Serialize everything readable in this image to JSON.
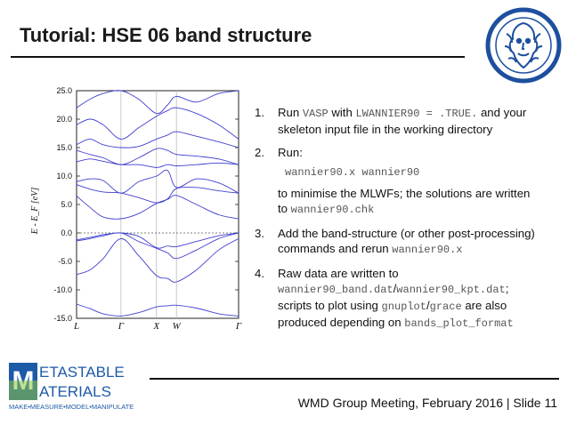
{
  "slide": {
    "title": "Tutorial: HSE 06 band structure",
    "footer": "WMD Group Meeting, February 2016 | Slide 11"
  },
  "logo": {
    "line1_big": "M",
    "line1_rest": "ETASTABLE",
    "line2_big": "M",
    "line2_rest": "ATERIALS",
    "tagline": "MAKE•MEASURE•MODEL•MANIPULATE",
    "colors": {
      "blue": "#1d5aa8",
      "green": "#8cc63f"
    }
  },
  "steps": [
    {
      "num": "1.",
      "t1": "Run ",
      "c1": "VASP",
      "t2": " with ",
      "c2": "LWANNIER90 = .TRUE.",
      "t3": " and your skeleton input file in the working directory"
    },
    {
      "num": "2.",
      "t1": "Run:",
      "code": "wannier90.x wannier90",
      "t2": "to minimise the MLWFs; the solutions are written to ",
      "c1": "wannier90.chk"
    },
    {
      "num": "3.",
      "t1": "Add the band-structure (or other post-processing) commands and rerun ",
      "c1": "wannier90.x"
    },
    {
      "num": "4.",
      "t1": "Raw data are written to ",
      "c1": "wannier90_band.dat",
      "t2": "/",
      "c2": "wannier90_kpt.dat",
      "t3": "; scripts to plot using ",
      "c3": "gnuplot",
      "t4": "/",
      "c4": "grace",
      "t5": " are also produced depending on ",
      "c5": "bands_plot_format"
    }
  ],
  "chart_data": {
    "type": "line",
    "ylabel": "E - E_F [eV]",
    "ylim": [
      -15,
      25
    ],
    "yticks": [
      "25.0",
      "20.0",
      "15.0",
      "10.0",
      "5.0",
      "0.0",
      "-5.0",
      "-10.0",
      "-15.0"
    ],
    "xticks": [
      "L",
      "Γ",
      "X",
      "W",
      "Γ"
    ],
    "kpath": [
      0,
      1,
      1.8,
      2.25,
      3.65
    ],
    "fermi_level": 0,
    "band_color": "#3f3fd0",
    "series": [
      {
        "x": [
          0,
          0.3,
          0.6,
          1,
          1.4,
          1.8,
          2.05,
          2.25,
          2.7,
          3.2,
          3.65
        ],
        "y": [
          -12.5,
          -13.3,
          -14.2,
          -14.6,
          -14.0,
          -13.0,
          -12.8,
          -12.7,
          -13.2,
          -14.2,
          -14.6
        ]
      },
      {
        "x": [
          0,
          0.3,
          0.6,
          1,
          1.4,
          1.8,
          2.05,
          2.25,
          2.7,
          3.2,
          3.65
        ],
        "y": [
          -7.3,
          -6.5,
          -4.5,
          -1.0,
          -4.0,
          -7.5,
          -8.0,
          -8.6,
          -6.5,
          -3.0,
          -1.0
        ]
      },
      {
        "x": [
          0,
          0.3,
          0.6,
          1,
          1.4,
          1.8,
          2.05,
          2.25,
          2.7,
          3.2,
          3.65
        ],
        "y": [
          -1.4,
          -1.0,
          -0.5,
          0,
          -1.5,
          -2.7,
          -3.5,
          -4.5,
          -3.0,
          -1.0,
          0
        ]
      },
      {
        "x": [
          0,
          0.3,
          0.6,
          1,
          1.4,
          1.8,
          2.05,
          2.25,
          2.7,
          3.2,
          3.65
        ],
        "y": [
          -1.2,
          -0.8,
          -0.3,
          0,
          -0.6,
          -2.6,
          -2.3,
          -2.4,
          -1.5,
          -0.5,
          0
        ]
      },
      {
        "x": [
          0,
          0.3,
          0.6,
          1,
          1.4,
          1.8,
          2.05,
          2.25,
          2.7,
          3.2,
          3.65
        ],
        "y": [
          6.5,
          4.5,
          2.8,
          2.5,
          3.4,
          5.2,
          5.9,
          6.6,
          5.0,
          3.2,
          2.5
        ]
      },
      {
        "x": [
          0,
          0.3,
          0.6,
          1,
          1.4,
          1.8,
          2.05,
          2.25,
          2.7,
          3.2,
          3.65
        ],
        "y": [
          8.5,
          7.7,
          7.2,
          7.0,
          6.2,
          5.3,
          6.0,
          7.8,
          8.0,
          7.4,
          7.0
        ]
      },
      {
        "x": [
          0,
          0.3,
          0.6,
          1,
          1.4,
          1.8,
          2.05,
          2.25,
          2.7,
          3.2,
          3.65
        ],
        "y": [
          9.0,
          9.5,
          9.2,
          7.0,
          9.0,
          10.0,
          11.0,
          8.0,
          9.5,
          8.8,
          7.0
        ]
      },
      {
        "x": [
          0,
          0.3,
          0.6,
          1,
          1.4,
          1.8,
          2.05,
          2.25,
          2.7,
          3.2,
          3.65
        ],
        "y": [
          12.5,
          13.0,
          12.6,
          12.0,
          12.0,
          11.5,
          12.0,
          11.8,
          12.0,
          12.3,
          12.0
        ]
      },
      {
        "x": [
          0,
          0.3,
          0.6,
          1,
          1.4,
          1.8,
          2.05,
          2.25,
          2.7,
          3.2,
          3.65
        ],
        "y": [
          14.5,
          13.8,
          13.2,
          12.0,
          13.2,
          14.8,
          14.5,
          13.8,
          13.5,
          13.0,
          12.0
        ]
      },
      {
        "x": [
          0,
          0.3,
          0.6,
          1,
          1.4,
          1.8,
          2.05,
          2.25,
          2.7,
          3.2,
          3.65
        ],
        "y": [
          15.5,
          16.5,
          15.5,
          15.0,
          15.2,
          16.5,
          17.2,
          17.8,
          17.0,
          16.0,
          15.0
        ]
      },
      {
        "x": [
          0,
          0.3,
          0.6,
          1,
          1.4,
          1.8,
          2.05,
          2.25,
          2.7,
          3.2,
          3.65
        ],
        "y": [
          19.0,
          20.0,
          19.0,
          16.5,
          18.5,
          20.5,
          21.5,
          22.0,
          21.0,
          19.0,
          16.5
        ]
      },
      {
        "x": [
          0,
          0.3,
          0.6,
          1,
          1.4,
          1.8,
          2.05,
          2.25,
          2.7,
          3.2,
          3.65
        ],
        "y": [
          22.0,
          23.5,
          24.5,
          25.0,
          23.5,
          21.0,
          22.5,
          24.0,
          23.0,
          24.5,
          25.0
        ]
      }
    ]
  }
}
